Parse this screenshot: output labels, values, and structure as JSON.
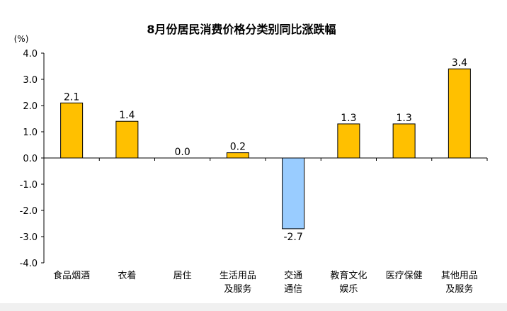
{
  "chart_data": {
    "type": "bar",
    "title": "8月份居民消费价格分类别同比涨跌幅",
    "ylabel": "(%)",
    "xlabel": "",
    "ylim": [
      -4.0,
      4.0
    ],
    "yticks": [
      "4.0",
      "3.0",
      "2.0",
      "1.0",
      "0.0",
      "-1.0",
      "-2.0",
      "-3.0",
      "-4.0"
    ],
    "categories": [
      [
        "食品烟酒"
      ],
      [
        "衣着"
      ],
      [
        "居住"
      ],
      [
        "生活用品",
        "及服务"
      ],
      [
        "交通",
        "通信"
      ],
      [
        "教育文化",
        "娱乐"
      ],
      [
        "医疗保健"
      ],
      [
        "其他用品",
        "及服务"
      ]
    ],
    "values": [
      2.1,
      1.4,
      0.0,
      0.2,
      -2.7,
      1.3,
      1.3,
      3.4
    ],
    "value_labels": [
      "2.1",
      "1.4",
      "0.0",
      "0.2",
      "-2.7",
      "1.3",
      "1.3",
      "3.4"
    ],
    "colors": {
      "positive": "#FFC000",
      "negative": "#99CCFF",
      "outline": "#000000"
    },
    "grid": false,
    "legend": "none"
  }
}
